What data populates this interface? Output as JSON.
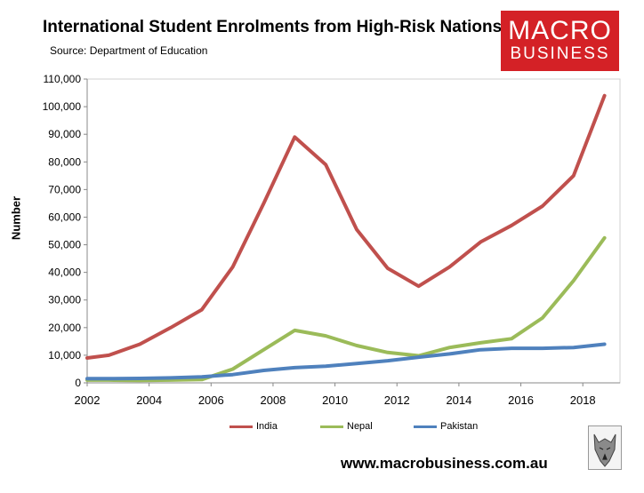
{
  "header": {
    "title": "International Student Enrolments from High-Risk Nations",
    "source": "Source: Department of Education"
  },
  "logo": {
    "line1": "MACRO",
    "line2": "BUSINESS",
    "color": "#d42126"
  },
  "footer": {
    "url": "www.macrobusiness.com.au"
  },
  "chart_data": {
    "type": "line",
    "title": "International Student Enrolments from High-Risk Nations",
    "xlabel": "",
    "ylabel": "Number",
    "xlim": [
      2002,
      2019.2
    ],
    "ylim": [
      0,
      110000
    ],
    "grid": false,
    "legend_position": "bottom",
    "x": [
      2002,
      2002.7,
      2003.7,
      2004.7,
      2005.7,
      2006.7,
      2007.7,
      2008.7,
      2009.7,
      2010.7,
      2011.7,
      2012.7,
      2013.7,
      2014.7,
      2015.7,
      2016.7,
      2017.7,
      2018.7
    ],
    "x_ticks": [
      2002,
      2004,
      2006,
      2008,
      2010,
      2012,
      2014,
      2016,
      2018
    ],
    "x_tick_labels": [
      "2002",
      "2004",
      "2006",
      "2008",
      "2010",
      "2012",
      "2014",
      "2016",
      "2018"
    ],
    "y_ticks": [
      0,
      10000,
      20000,
      30000,
      40000,
      50000,
      60000,
      70000,
      80000,
      90000,
      100000,
      110000
    ],
    "y_tick_labels": [
      "0",
      "10,000",
      "20,000",
      "30,000",
      "40,000",
      "50,000",
      "60,000",
      "70,000",
      "80,000",
      "90,000",
      "100,000",
      "110,000"
    ],
    "series": [
      {
        "name": "India",
        "color": "#c0504d",
        "values": [
          9000,
          10000,
          14000,
          20000,
          26500,
          42000,
          65000,
          89000,
          79000,
          55500,
          41500,
          35000,
          42000,
          51000,
          57000,
          64000,
          75000,
          104000
        ]
      },
      {
        "name": "Nepal",
        "color": "#9bbb59",
        "values": [
          1000,
          1000,
          900,
          1000,
          1200,
          5000,
          12000,
          19000,
          17000,
          13500,
          11000,
          9800,
          12800,
          14500,
          16000,
          23500,
          37000,
          52500
        ]
      },
      {
        "name": "Pakistan",
        "color": "#4f81bd",
        "values": [
          1500,
          1500,
          1600,
          1800,
          2200,
          3000,
          4500,
          5500,
          6000,
          7000,
          8000,
          9300,
          10500,
          12000,
          12500,
          12500,
          12800,
          14000
        ]
      }
    ]
  }
}
